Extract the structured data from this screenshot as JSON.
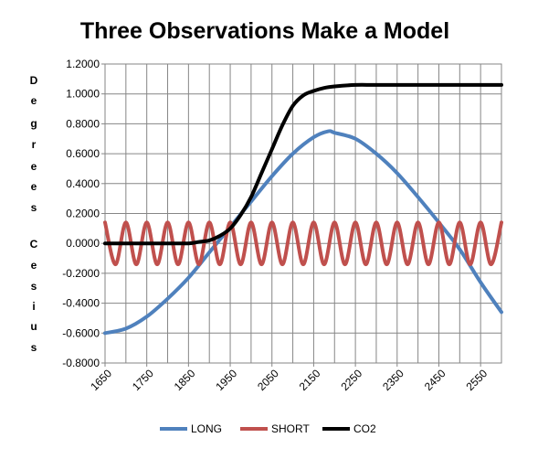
{
  "chart_data": {
    "type": "line",
    "title": "Three Observations Make a Model",
    "ylabel_letters": [
      "D",
      "e",
      "g",
      "r",
      "e",
      "e",
      "s",
      "C",
      "e",
      "s",
      "i",
      "u",
      "s"
    ],
    "xlabel": "",
    "ylim": [
      -0.8,
      1.2
    ],
    "xlim": [
      1650,
      2600
    ],
    "y_ticks": [
      "1.2000",
      "1.0000",
      "0.8000",
      "0.6000",
      "0.4000",
      "0.2000",
      "0.0000",
      "-0.2000",
      "-0.4000",
      "-0.6000",
      "-0.8000"
    ],
    "x_ticks": [
      "1650",
      "1750",
      "1850",
      "1950",
      "2050",
      "2150",
      "2250",
      "2350",
      "2450",
      "2550"
    ],
    "grid": true,
    "legend_position": "bottom",
    "series": [
      {
        "name": "LONG",
        "color": "#4f81bd",
        "x": [
          1650,
          1700,
          1750,
          1800,
          1850,
          1900,
          1950,
          2000,
          2050,
          2100,
          2150,
          2185,
          2200,
          2250,
          2300,
          2350,
          2400,
          2450,
          2500,
          2550,
          2600
        ],
        "y": [
          -0.6,
          -0.57,
          -0.49,
          -0.37,
          -0.23,
          -0.06,
          0.11,
          0.28,
          0.45,
          0.6,
          0.71,
          0.75,
          0.74,
          0.7,
          0.6,
          0.47,
          0.31,
          0.14,
          -0.04,
          -0.26,
          -0.46
        ]
      },
      {
        "name": "SHORT",
        "color": "#c0504d",
        "x": [
          1650,
          1675,
          1700,
          1725,
          1750,
          1775,
          1800,
          1825,
          1850,
          1875,
          1900,
          1925,
          1950,
          1975,
          2000,
          2025,
          2050,
          2075,
          2100,
          2125,
          2150,
          2175,
          2200,
          2225,
          2250,
          2275,
          2300,
          2325,
          2350,
          2375,
          2400,
          2425,
          2450,
          2475,
          2500,
          2525,
          2550,
          2575,
          2600
        ],
        "y": [
          0.14,
          -0.14,
          0.14,
          -0.14,
          0.14,
          -0.14,
          0.14,
          -0.14,
          0.14,
          -0.14,
          0.14,
          -0.14,
          0.14,
          -0.14,
          0.14,
          -0.14,
          0.14,
          -0.14,
          0.14,
          -0.14,
          0.14,
          -0.14,
          0.14,
          -0.14,
          0.14,
          -0.14,
          0.14,
          -0.14,
          0.14,
          -0.14,
          0.14,
          -0.14,
          0.14,
          -0.14,
          0.14,
          -0.14,
          0.14,
          -0.14,
          0.14
        ]
      },
      {
        "name": "CO2",
        "color": "#000000",
        "x": [
          1650,
          1700,
          1750,
          1800,
          1850,
          1875,
          1900,
          1925,
          1950,
          1975,
          2000,
          2025,
          2050,
          2075,
          2100,
          2125,
          2150,
          2175,
          2200,
          2250,
          2300,
          2400,
          2500,
          2600
        ],
        "y": [
          0.0,
          0.0,
          0.0,
          0.0,
          0.0,
          0.01,
          0.02,
          0.05,
          0.1,
          0.19,
          0.31,
          0.47,
          0.63,
          0.79,
          0.92,
          0.99,
          1.02,
          1.04,
          1.05,
          1.06,
          1.06,
          1.06,
          1.06,
          1.06
        ]
      }
    ]
  }
}
